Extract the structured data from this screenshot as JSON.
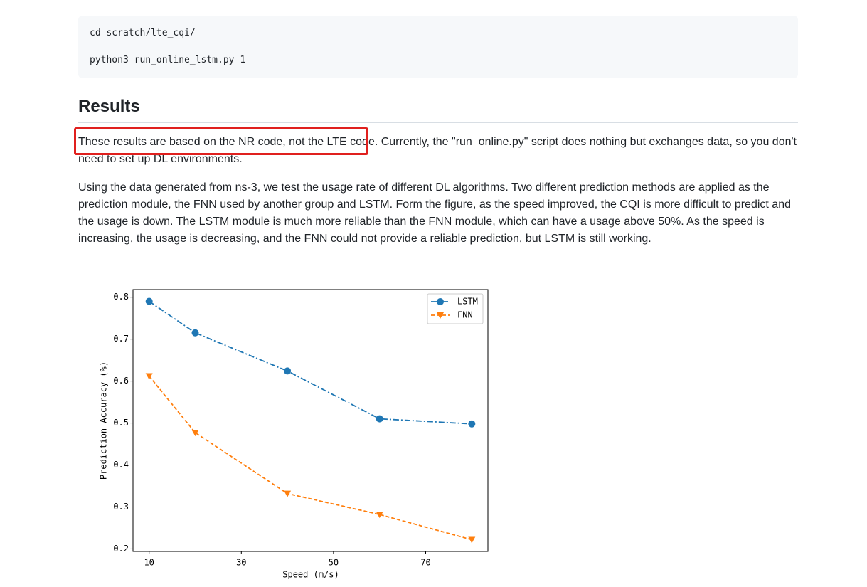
{
  "page": {
    "code": [
      "cd scratch/lte_cqi/",
      "python3 run_online_lstm.py 1"
    ],
    "heading": "Results",
    "paragraphs": [
      "These results are based on the NR code, not the LTE code. Currently, the \"run_online.py\" script does nothing but exchanges data, so you don't need to set up DL environments.",
      "Using the data generated from ns-3, we test the usage rate of different DL algorithms. Two different prediction methods are applied as the prediction module, the FNN used by another group and LSTM. Form the figure, as the speed improved, the CQI is more difficult to predict and the usage is down. The LSTM module is much more reliable than the FNN module, which can have a usage above 50%. As the speed is increasing, the usage is decreasing, and the FNN could not provide a reliable prediction, but LSTM is still working."
    ]
  },
  "chart_data": {
    "type": "line",
    "x_label": "Speed (m/s)",
    "y_label": "Prediction Accuracy (%)",
    "x": [
      10,
      20,
      40,
      60,
      80
    ],
    "series": [
      {
        "name": "LSTM",
        "color": "#1f77b4",
        "values": [
          0.79,
          0.715,
          0.624,
          0.51,
          0.498
        ]
      },
      {
        "name": "FNN",
        "color": "#ff7f0e",
        "values": [
          0.612,
          0.477,
          0.332,
          0.282,
          0.222
        ]
      }
    ],
    "xlim": [
      6.5,
      83.5
    ],
    "xticks": [
      10,
      30,
      50,
      70
    ],
    "ylim": [
      0.194,
      0.818
    ],
    "yticks": [
      0.2,
      0.3,
      0.4,
      0.5,
      0.6,
      0.7,
      0.8
    ],
    "legend": "upper right"
  }
}
